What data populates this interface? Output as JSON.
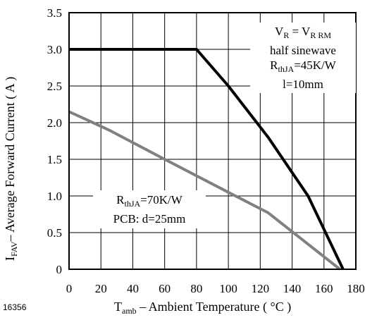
{
  "figure_id": "16356",
  "chart_data": {
    "type": "line",
    "xlabel": {
      "main": "T",
      "sub": "amb",
      "rest": " – Ambient Temperature ( °C )"
    },
    "ylabel": {
      "main": "I",
      "sub": "FAV",
      "rest": "– Average Forward Current ( A )"
    },
    "xlim": [
      0,
      180
    ],
    "ylim": [
      0,
      3.5
    ],
    "x_ticks": [
      "0",
      "20",
      "40",
      "60",
      "80",
      "100",
      "120",
      "140",
      "160",
      "180"
    ],
    "y_ticks": [
      "0",
      "0.5",
      "1.0",
      "1.5",
      "2.0",
      "2.5",
      "3.0",
      "3.5"
    ],
    "grid": true,
    "series": [
      {
        "color": "#000000",
        "x": [
          0,
          80,
          100,
          125,
          150,
          172
        ],
        "y": [
          3.0,
          3.0,
          2.5,
          1.8,
          1.0,
          0
        ]
      },
      {
        "color": "#808080",
        "x": [
          0,
          25,
          60,
          100,
          125,
          170
        ],
        "y": [
          2.15,
          1.9,
          1.5,
          1.05,
          0.77,
          0
        ]
      }
    ],
    "annotations": {
      "black_line": {
        "line1_a": "V",
        "line1_a_sub": "R",
        "line1_b": " = V",
        "line1_b_sub": "R RM",
        "line2": "half sinewave",
        "line3_a": "R",
        "line3_sub": "thJA",
        "line3_b": "=45K/W",
        "line4": "l=10mm"
      },
      "gray_line": {
        "line1_a": "R",
        "line1_sub": "thJA",
        "line1_b": "=70K/W",
        "line2": "PCB: d=25mm"
      }
    }
  }
}
